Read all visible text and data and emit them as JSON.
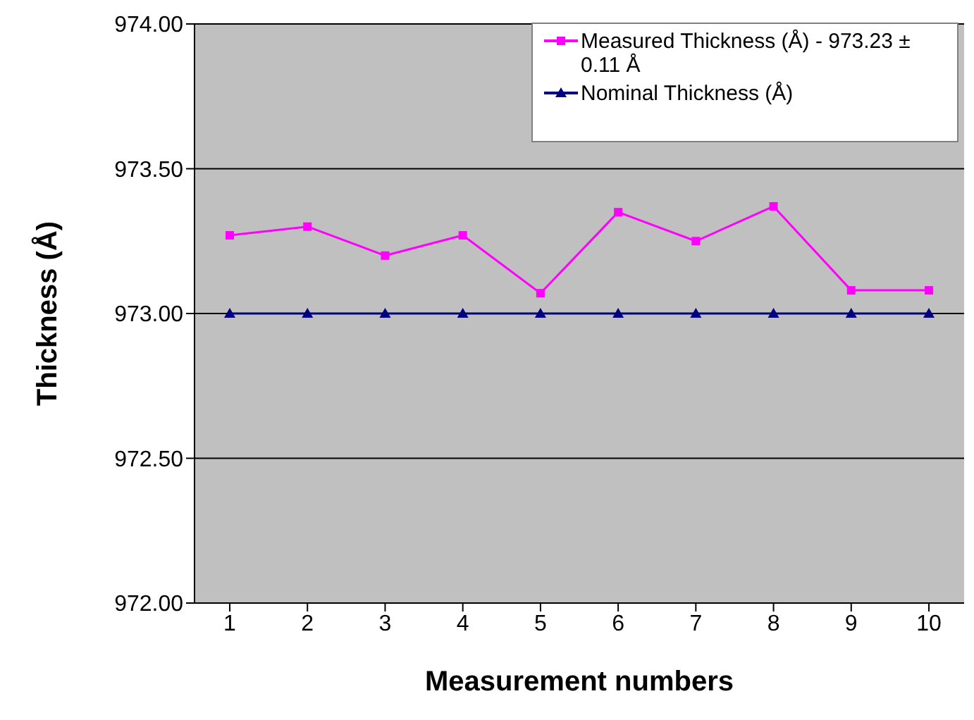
{
  "chart_data": {
    "type": "line",
    "xlabel": "Measurement numbers",
    "ylabel": "Thickness (Å)",
    "categories": [
      "1",
      "2",
      "3",
      "4",
      "5",
      "6",
      "7",
      "8",
      "9",
      "10"
    ],
    "series": [
      {
        "name": "Measured Thickness (Å) - 973.23 ± 0.11 Å",
        "color": "#ff00ff",
        "marker": "square",
        "values": [
          973.27,
          973.3,
          973.2,
          973.27,
          973.07,
          973.35,
          973.25,
          973.37,
          973.08,
          973.08
        ]
      },
      {
        "name": "Nominal Thickness (Å)",
        "color": "#000080",
        "marker": "triangle",
        "values": [
          973,
          973,
          973,
          973,
          973,
          973,
          973,
          973,
          973,
          973
        ]
      }
    ],
    "ylim": [
      972,
      974
    ],
    "yticks": [
      {
        "value": 972,
        "label": "972.00"
      },
      {
        "value": 972.5,
        "label": "972.50"
      },
      {
        "value": 973,
        "label": "973.00"
      },
      {
        "value": 973.5,
        "label": "973.50"
      },
      {
        "value": 974,
        "label": "974.00"
      }
    ],
    "grid": "y",
    "legend": "top right"
  }
}
